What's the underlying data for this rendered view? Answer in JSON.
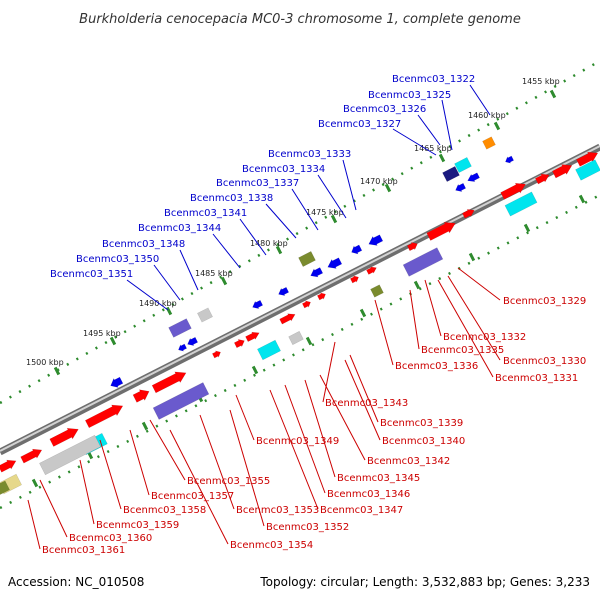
{
  "title": "Burkholderia cenocepacia MC0-3 chromosome 1, complete genome",
  "footer": {
    "accession": "Accession: NC_010508",
    "summary": "Topology: circular; Length: 3,532,883 bp; Genes: 3,233"
  },
  "kbp_ticks": [
    "1455 kbp",
    "1460 kbp",
    "1465 kbp",
    "1470 kbp",
    "1475 kbp",
    "1480 kbp",
    "1485 kbp",
    "1490 kbp",
    "1495 kbp",
    "1500 kbp"
  ],
  "genes_upper": [
    "Bcenmc03_1322",
    "Bcenmc03_1325",
    "Bcenmc03_1326",
    "Bcenmc03_1327",
    "Bcenmc03_1333",
    "Bcenmc03_1334",
    "Bcenmc03_1337",
    "Bcenmc03_1338",
    "Bcenmc03_1341",
    "Bcenmc03_1344",
    "Bcenmc03_1348",
    "Bcenmc03_1350",
    "Bcenmc03_1351"
  ],
  "genes_lower": [
    "Bcenmc03_1329",
    "Bcenmc03_1332",
    "Bcenmc03_1335",
    "Bcenmc03_1330",
    "Bcenmc03_1336",
    "Bcenmc03_1331",
    "Bcenmc03_1343",
    "Bcenmc03_1339",
    "Bcenmc03_1340",
    "Bcenmc03_1349",
    "Bcenmc03_1342",
    "Bcenmc03_1345",
    "Bcenmc03_1346",
    "Bcenmc03_1355",
    "Bcenmc03_1347",
    "Bcenmc03_1357",
    "Bcenmc03_1353",
    "Bcenmc03_1358",
    "Bcenmc03_1352",
    "Bcenmc03_1359",
    "Bcenmc03_1360",
    "Bcenmc03_1354",
    "Bcenmc03_1361"
  ],
  "colors": {
    "backbone": "#888888",
    "tick_dots": "#2e8b2e",
    "label_upper": "#0000cc",
    "label_lower": "#cc0000",
    "gene_red": "#ff0000",
    "gene_blue": "#0000ee",
    "gene_cyan": "#00e5ee",
    "gene_grey": "#c8c8c8",
    "gene_slate": "#6a5acd",
    "gene_olive": "#7a8b2e",
    "gene_orange": "#ff8c00",
    "gene_navy": "#1a1a80",
    "gene_khaki": "#e6d88a"
  }
}
